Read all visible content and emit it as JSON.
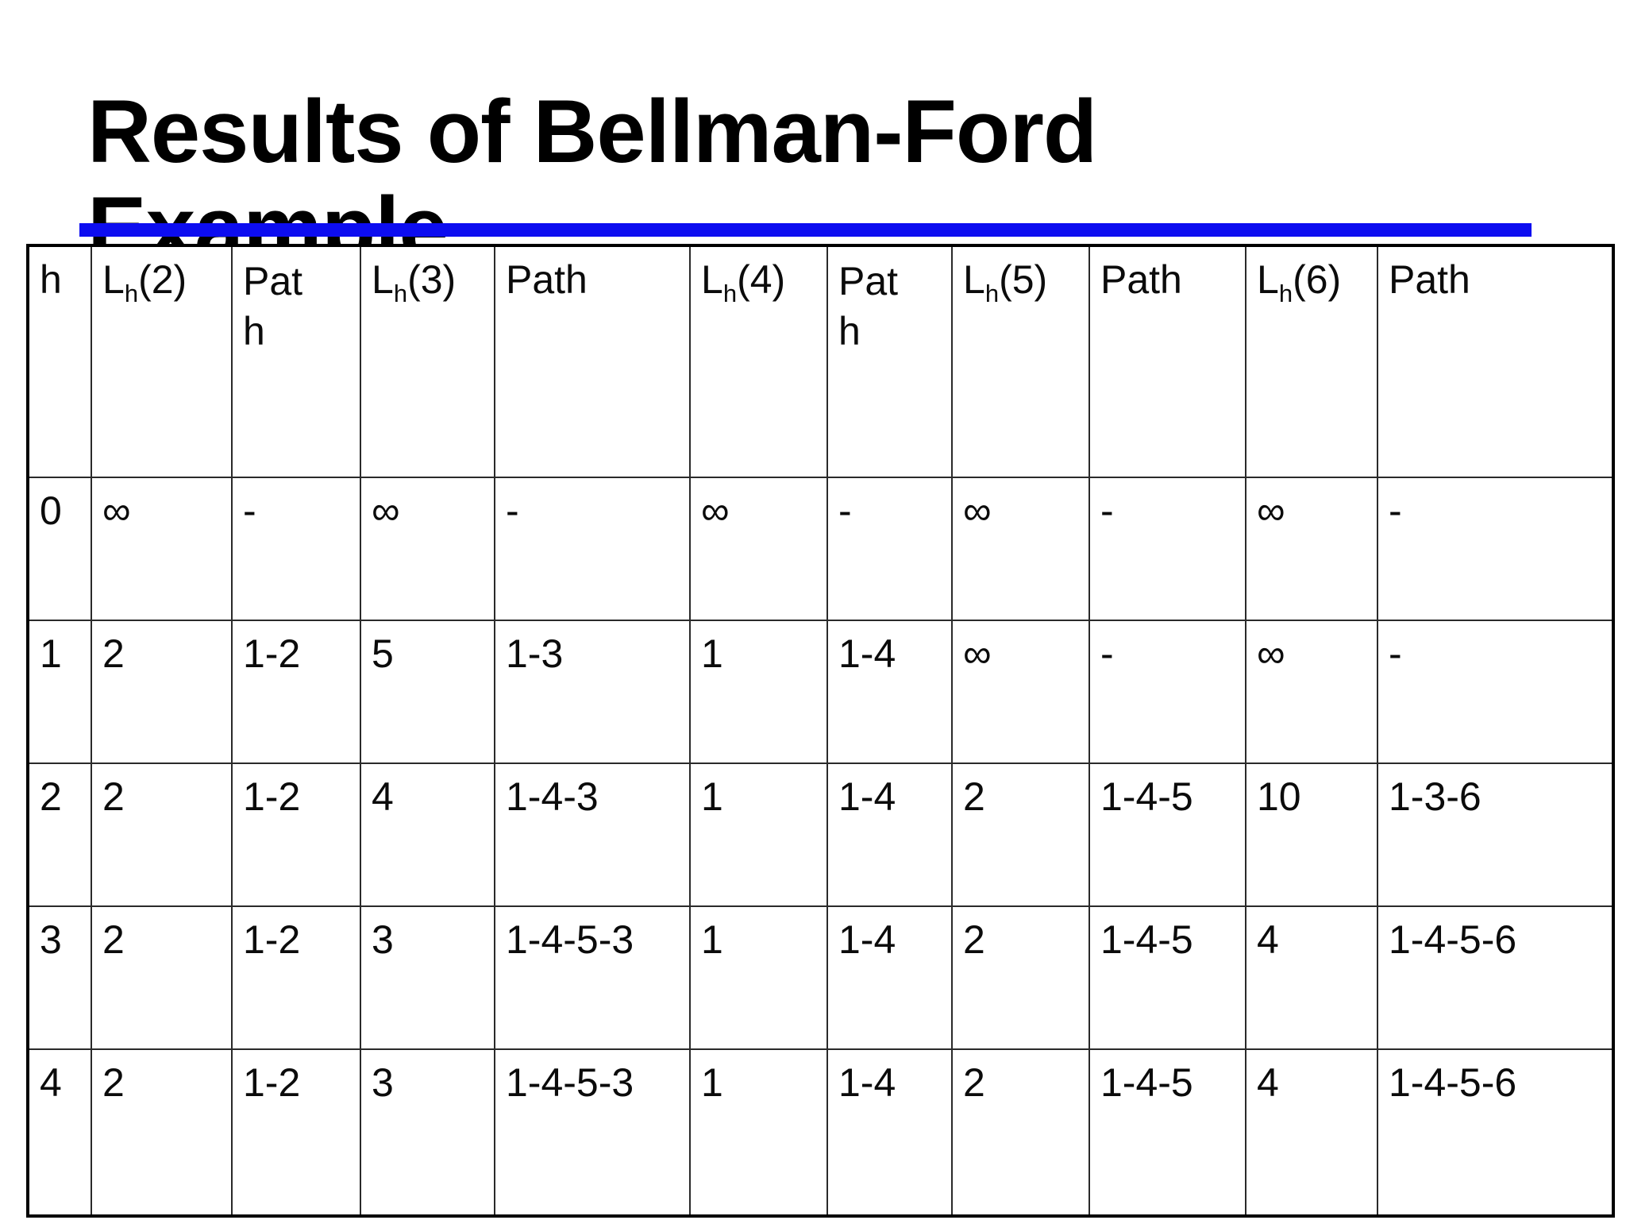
{
  "slide": {
    "title": "Results of Bellman-Ford Example",
    "accent_color": "#0d0df0"
  },
  "table": {
    "columns": [
      {
        "label": "h"
      },
      {
        "pre": "L",
        "sub": "h",
        "post": "(2)"
      },
      {
        "label": "Path"
      },
      {
        "pre": "L",
        "sub": "h",
        "post": "(3)"
      },
      {
        "label": "Path"
      },
      {
        "pre": "L",
        "sub": "h",
        "post": "(4)"
      },
      {
        "label": "Path"
      },
      {
        "pre": "L",
        "sub": "h",
        "post": "(5)"
      },
      {
        "label": "Path"
      },
      {
        "pre": "L",
        "sub": "h",
        "post": "(6)"
      },
      {
        "label": "Path"
      }
    ],
    "rows": [
      [
        "0",
        "∞",
        "-",
        "∞",
        "-",
        "∞",
        "-",
        "∞",
        "-",
        "∞",
        "-"
      ],
      [
        "1",
        "2",
        "1-2",
        "5",
        "1-3",
        "1",
        "1-4",
        "∞",
        "-",
        "∞",
        "-"
      ],
      [
        "2",
        "2",
        "1-2",
        "4",
        "1-4-3",
        "1",
        "1-4",
        "2",
        "1-4-5",
        "10",
        "1-3-6"
      ],
      [
        "3",
        "2",
        "1-2",
        "3",
        "1-4-5-3",
        "1",
        "1-4",
        "2",
        "1-4-5",
        "4",
        "1-4-5-6"
      ],
      [
        "4",
        "2",
        "1-2",
        "3",
        "1-4-5-3",
        "1",
        "1-4",
        "2",
        "1-4-5",
        "4",
        "1-4-5-6"
      ]
    ]
  }
}
